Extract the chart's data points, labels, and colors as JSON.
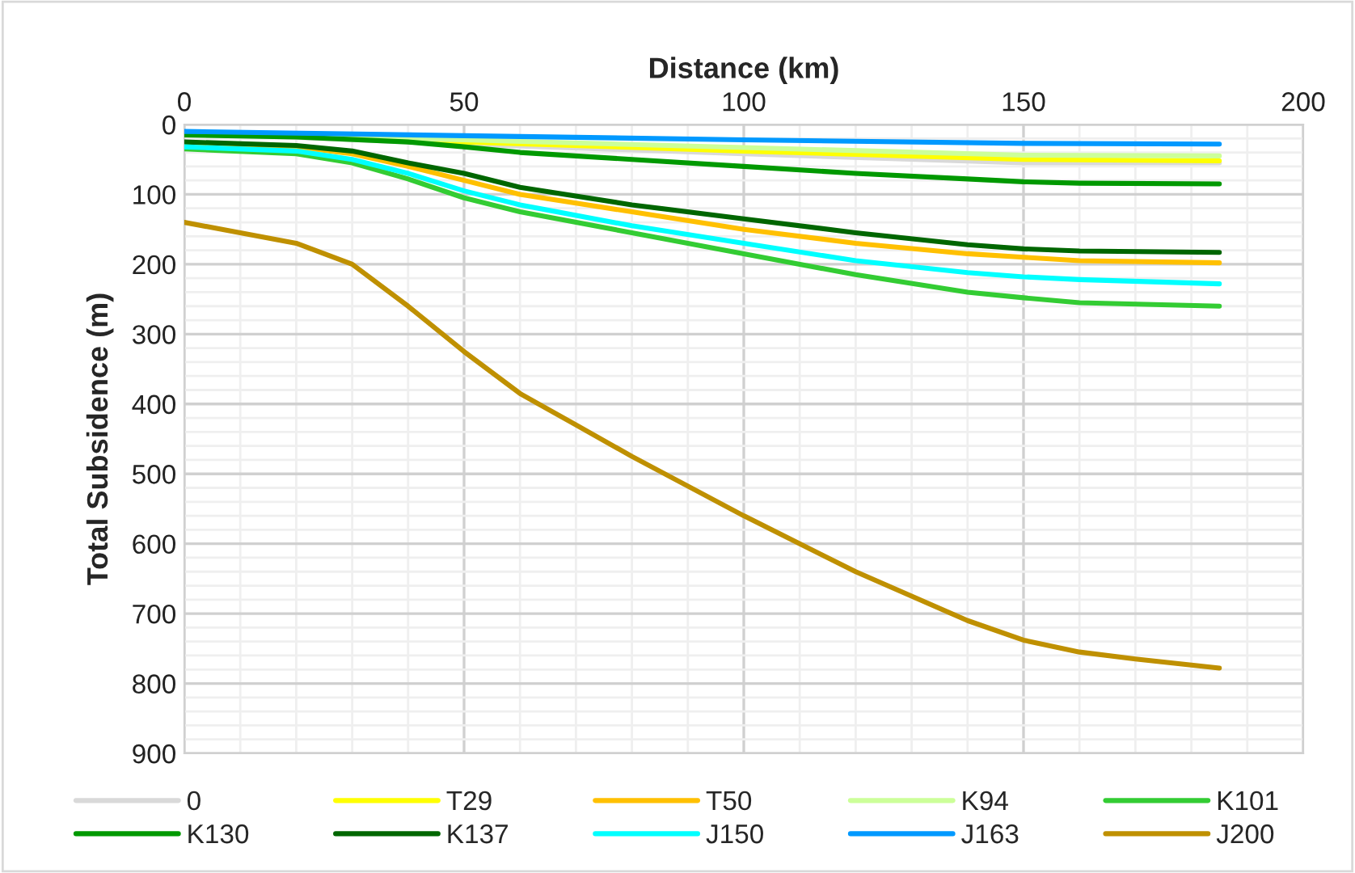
{
  "chart_data": {
    "type": "line",
    "xlabel": "Distance (km)",
    "ylabel": "Total Subsidence (m)",
    "xlim": [
      0,
      200
    ],
    "xticks": [
      0,
      50,
      100,
      150,
      200
    ],
    "ylim": [
      900,
      0
    ],
    "yticks": [
      0,
      100,
      200,
      300,
      400,
      500,
      600,
      700,
      800,
      900
    ],
    "grid": true,
    "legend": "bottom",
    "marker": "none",
    "line_style": "solid",
    "series": [
      {
        "name": "0",
        "color": "#d9d9d9",
        "x": [
          0,
          50,
          100,
          150,
          185
        ],
        "values": [
          12,
          28,
          42,
          55,
          55
        ]
      },
      {
        "name": "T29",
        "color": "#ffff00",
        "x": [
          0,
          50,
          100,
          150,
          185
        ],
        "values": [
          12,
          25,
          38,
          50,
          52
        ]
      },
      {
        "name": "T50",
        "color": "#ffc000",
        "x": [
          0,
          20,
          30,
          40,
          50,
          60,
          80,
          100,
          120,
          140,
          150,
          160,
          185
        ],
        "values": [
          28,
          32,
          42,
          60,
          80,
          100,
          125,
          150,
          170,
          185,
          190,
          195,
          198
        ]
      },
      {
        "name": "K94",
        "color": "#ccff99",
        "x": [
          0,
          50,
          100,
          150,
          185
        ],
        "values": [
          12,
          22,
          33,
          44,
          45
        ]
      },
      {
        "name": "K101",
        "color": "#33cc33",
        "x": [
          0,
          20,
          30,
          40,
          50,
          60,
          80,
          100,
          120,
          140,
          150,
          160,
          185
        ],
        "values": [
          35,
          42,
          55,
          78,
          105,
          125,
          155,
          185,
          215,
          240,
          248,
          255,
          260
        ]
      },
      {
        "name": "K130",
        "color": "#009900",
        "x": [
          0,
          20,
          40,
          50,
          60,
          80,
          100,
          120,
          140,
          150,
          160,
          185
        ],
        "values": [
          15,
          18,
          25,
          32,
          40,
          50,
          60,
          70,
          78,
          82,
          84,
          85
        ]
      },
      {
        "name": "K137",
        "color": "#006600",
        "x": [
          0,
          20,
          30,
          40,
          50,
          60,
          80,
          100,
          120,
          140,
          150,
          160,
          185
        ],
        "values": [
          25,
          30,
          38,
          55,
          70,
          90,
          115,
          135,
          155,
          172,
          178,
          181,
          183
        ]
      },
      {
        "name": "J150",
        "color": "#00ffff",
        "x": [
          0,
          20,
          30,
          40,
          50,
          60,
          80,
          100,
          120,
          140,
          150,
          160,
          185
        ],
        "values": [
          32,
          38,
          50,
          70,
          95,
          115,
          145,
          170,
          195,
          212,
          218,
          222,
          228
        ]
      },
      {
        "name": "J163",
        "color": "#0099ff",
        "x": [
          0,
          50,
          100,
          150,
          185
        ],
        "values": [
          10,
          16,
          22,
          27,
          28
        ]
      },
      {
        "name": "J200",
        "color": "#bf9000",
        "x": [
          0,
          10,
          20,
          30,
          40,
          50,
          60,
          70,
          80,
          100,
          120,
          140,
          150,
          160,
          170,
          185
        ],
        "values": [
          140,
          155,
          170,
          200,
          260,
          325,
          385,
          430,
          475,
          560,
          640,
          710,
          738,
          755,
          765,
          778
        ]
      }
    ]
  }
}
